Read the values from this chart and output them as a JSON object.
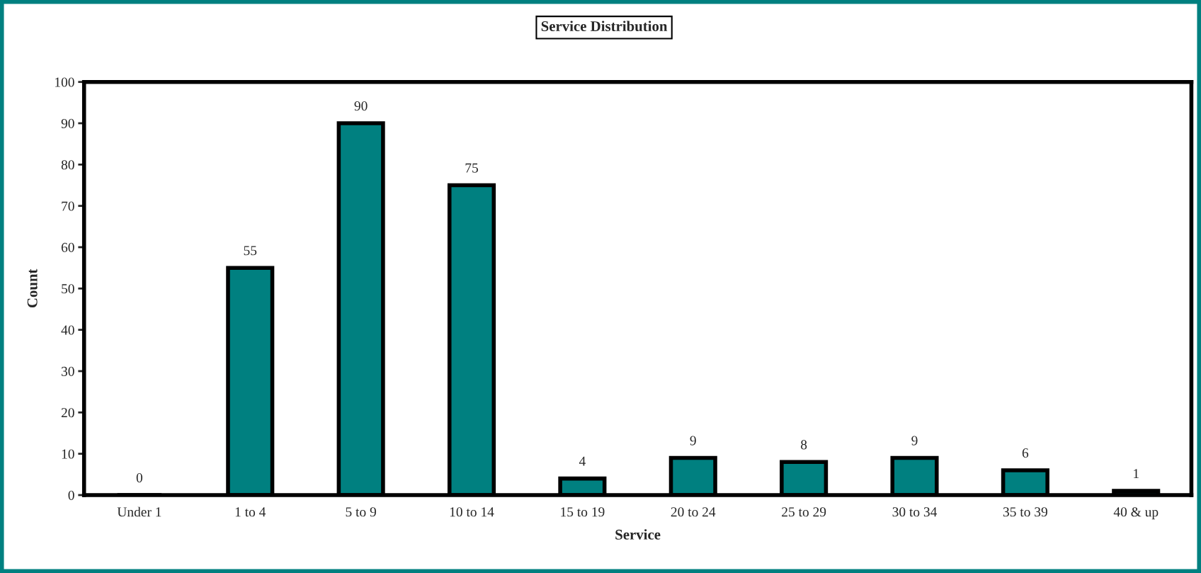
{
  "chart_data": {
    "type": "bar",
    "title": "Service Distribution",
    "xlabel": "Service",
    "ylabel": "Count",
    "categories": [
      "Under 1",
      "1 to 4",
      "5 to 9",
      "10 to 14",
      "15 to 19",
      "20 to 24",
      "25 to 29",
      "30 to 34",
      "35 to 39",
      "40 & up"
    ],
    "values": [
      0,
      55,
      90,
      75,
      4,
      9,
      8,
      9,
      6,
      1
    ],
    "color": "#008080",
    "ylim": [
      0,
      100
    ],
    "yticks": [
      0,
      10,
      20,
      30,
      40,
      50,
      60,
      70,
      80,
      90,
      100
    ],
    "data_labels": true,
    "grid": false,
    "legend": false
  }
}
